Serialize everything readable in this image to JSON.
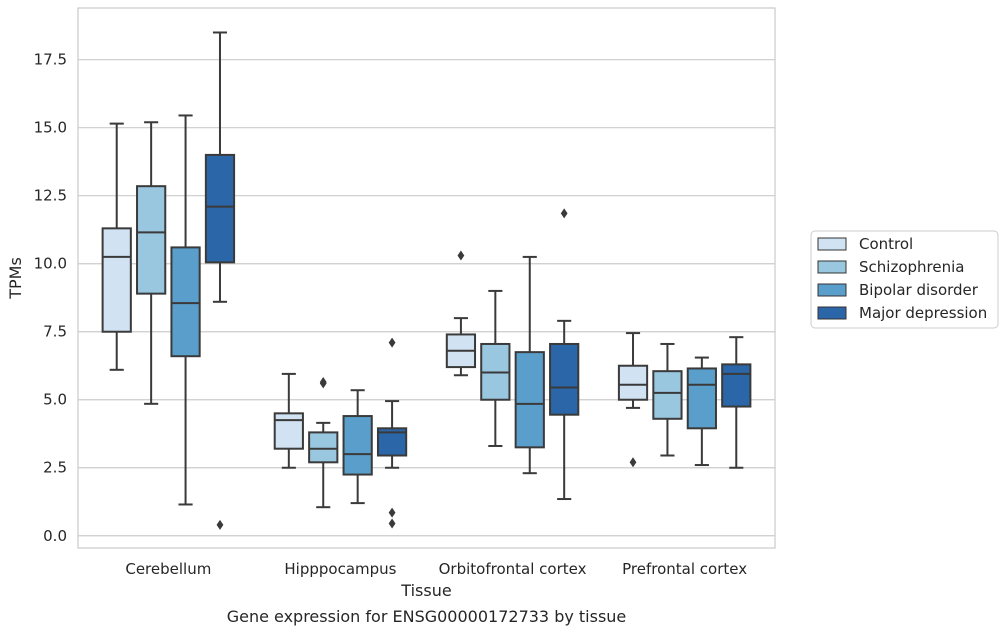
{
  "chart_data": {
    "type": "box",
    "title": "",
    "caption": "Gene expression for ENSG00000172733 by tissue",
    "xlabel": "Tissue",
    "ylabel": "TPMs",
    "ylim": [
      -0.45,
      19.4
    ],
    "yticks": [
      "0.0",
      "2.5",
      "5.0",
      "7.5",
      "10.0",
      "12.5",
      "15.0",
      "17.5"
    ],
    "grid": true,
    "legend_position": "right",
    "categories": [
      "Cerebellum",
      "Hipppocampus",
      "Orbitofrontal cortex",
      "Prefrontal cortex"
    ],
    "series": [
      {
        "name": "Control",
        "color": "#d1e2f2",
        "boxes": [
          {
            "whisker_low": 6.1,
            "q1": 7.5,
            "median": 10.25,
            "q3": 11.3,
            "whisker_high": 15.15,
            "outliers": []
          },
          {
            "whisker_low": 2.5,
            "q1": 3.2,
            "median": 4.25,
            "q3": 4.5,
            "whisker_high": 5.95,
            "outliers": []
          },
          {
            "whisker_low": 5.9,
            "q1": 6.2,
            "median": 6.8,
            "q3": 7.4,
            "whisker_high": 8.0,
            "outliers": [
              10.3
            ]
          },
          {
            "whisker_low": 4.7,
            "q1": 5.0,
            "median": 5.55,
            "q3": 6.25,
            "whisker_high": 7.45,
            "outliers": [
              2.7
            ]
          }
        ]
      },
      {
        "name": "Schizophrenia",
        "color": "#9ac7e0",
        "boxes": [
          {
            "whisker_low": 4.85,
            "q1": 8.9,
            "median": 11.15,
            "q3": 12.85,
            "whisker_high": 15.2,
            "outliers": []
          },
          {
            "whisker_low": 1.05,
            "q1": 2.7,
            "median": 3.2,
            "q3": 3.8,
            "whisker_high": 4.15,
            "outliers": [
              5.6,
              5.65
            ]
          },
          {
            "whisker_low": 3.3,
            "q1": 5.0,
            "median": 6.0,
            "q3": 7.05,
            "whisker_high": 9.0,
            "outliers": []
          },
          {
            "whisker_low": 2.95,
            "q1": 4.3,
            "median": 5.25,
            "q3": 6.05,
            "whisker_high": 7.05,
            "outliers": []
          }
        ]
      },
      {
        "name": "Bipolar disorder",
        "color": "#5a9fcc",
        "boxes": [
          {
            "whisker_low": 1.15,
            "q1": 6.6,
            "median": 8.55,
            "q3": 10.6,
            "whisker_high": 15.45,
            "outliers": []
          },
          {
            "whisker_low": 1.2,
            "q1": 2.25,
            "median": 3.0,
            "q3": 4.4,
            "whisker_high": 5.35,
            "outliers": []
          },
          {
            "whisker_low": 2.3,
            "q1": 3.25,
            "median": 4.85,
            "q3": 6.75,
            "whisker_high": 10.25,
            "outliers": []
          },
          {
            "whisker_low": 2.6,
            "q1": 3.95,
            "median": 5.55,
            "q3": 6.15,
            "whisker_high": 6.55,
            "outliers": []
          }
        ]
      },
      {
        "name": "Major depression",
        "color": "#2b66a8",
        "boxes": [
          {
            "whisker_low": 8.6,
            "q1": 10.05,
            "median": 12.1,
            "q3": 14.0,
            "whisker_high": 18.5,
            "outliers": [
              0.4
            ]
          },
          {
            "whisker_low": 2.5,
            "q1": 2.95,
            "median": 3.8,
            "q3": 3.95,
            "whisker_high": 4.95,
            "outliers": [
              7.1,
              0.85,
              0.45
            ]
          },
          {
            "whisker_low": 1.35,
            "q1": 4.45,
            "median": 5.45,
            "q3": 7.05,
            "whisker_high": 7.9,
            "outliers": [
              11.85
            ]
          },
          {
            "whisker_low": 2.5,
            "q1": 4.75,
            "median": 5.95,
            "q3": 6.3,
            "whisker_high": 7.3,
            "outliers": []
          }
        ]
      }
    ]
  }
}
